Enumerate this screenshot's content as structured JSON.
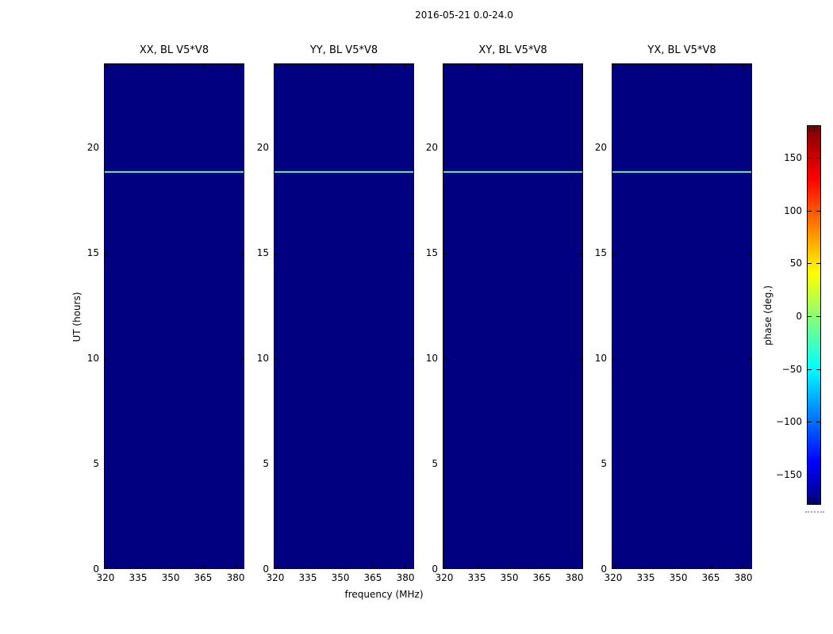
{
  "figure": {
    "suptitle": "2016-05-21 0.0-24.0",
    "xlabel": "frequency (MHz)",
    "ylabel": "UT (hours)",
    "colorbar_label": "phase (deg.)"
  },
  "panels": [
    {
      "title": "XX, BL V5*V8"
    },
    {
      "title": "YY, BL V5*V8"
    },
    {
      "title": "XY, BL V5*V8"
    },
    {
      "title": "YX, BL V5*V8"
    }
  ],
  "axes": {
    "x_ticks": [
      "320",
      "335",
      "350",
      "365",
      "380"
    ],
    "y_ticks": [
      "20",
      "15",
      "10",
      "5",
      "0"
    ]
  },
  "colorbar": {
    "ticks": [
      "150",
      "100",
      "50",
      "0",
      "−50",
      "−100",
      "−150"
    ]
  },
  "colors": {
    "panel_background": "#000081",
    "feature_line": "#5fe6a0",
    "colormap_jet_top_to_bottom": [
      "#800000",
      "#ff0000",
      "#ffff00",
      "#00ffff",
      "#0000ff",
      "#000080"
    ]
  },
  "chart_data": {
    "type": "heatmap",
    "title": "2016-05-21 0.0-24.0",
    "panels": [
      {
        "title": "XX, BL V5*V8"
      },
      {
        "title": "YY, BL V5*V8"
      },
      {
        "title": "XY, BL V5*V8"
      },
      {
        "title": "YX, BL V5*V8"
      }
    ],
    "x_axis": {
      "label": "frequency (MHz)",
      "range": [
        319,
        384
      ],
      "ticks": [
        320,
        335,
        350,
        365,
        380
      ]
    },
    "y_axis": {
      "label": "UT (hours)",
      "range": [
        0,
        24
      ],
      "ticks": [
        0,
        5,
        10,
        15,
        20
      ]
    },
    "colorbar": {
      "label": "phase (deg.)",
      "range": [
        -180,
        180
      ],
      "ticks": [
        -150,
        -100,
        -50,
        0,
        50,
        100,
        150
      ],
      "colormap": "jet"
    },
    "content": {
      "background_phase_deg": -180,
      "features": [
        {
          "description": "single horizontal line spanning full frequency range in all four panels",
          "ut_hours": 18.9,
          "approx_phase_deg": 10,
          "color": "#5fe6a0"
        }
      ]
    },
    "grid": false,
    "legend": false
  }
}
